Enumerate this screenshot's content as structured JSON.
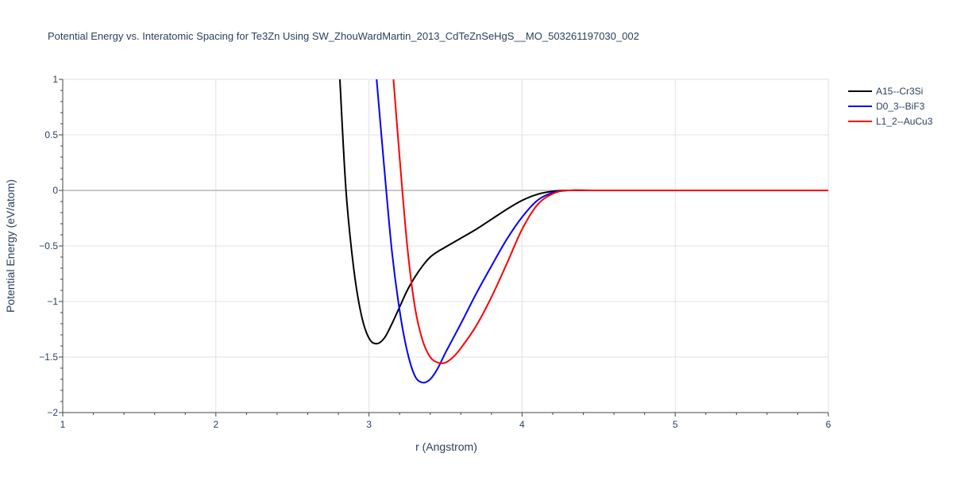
{
  "chart_data": {
    "type": "line",
    "title": "Potential Energy vs. Interatomic Spacing for Te3Zn Using SW_ZhouWardMartin_2013_CdTeZnSeHgS__MO_503261197030_002",
    "xlabel": "r (Angstrom)",
    "ylabel": "Potential Energy (eV/atom)",
    "xlim": [
      1,
      6
    ],
    "ylim": [
      -2,
      1
    ],
    "x_ticks": [
      1,
      2,
      3,
      4,
      5,
      6
    ],
    "x_tick_labels": [
      "1",
      "2",
      "3",
      "4",
      "5",
      "6"
    ],
    "y_ticks": [
      -2,
      -1.5,
      -1,
      -0.5,
      0,
      0.5,
      1
    ],
    "y_tick_labels": [
      "−2",
      "−1.5",
      "−1",
      "−0.5",
      "0",
      "0.5",
      "1"
    ],
    "grid": true,
    "legend_position": "top-right",
    "series": [
      {
        "name": "A15--Cr3Si",
        "color": "#000000",
        "x": [
          2.81,
          2.85,
          2.9,
          2.95,
          3.0,
          3.05,
          3.1,
          3.15,
          3.2,
          3.25,
          3.3,
          3.35,
          3.4,
          3.45,
          3.5,
          3.6,
          3.7,
          3.8,
          3.9,
          4.0,
          4.1,
          4.2,
          4.3,
          4.5,
          5.0,
          6.0
        ],
        "y": [
          1.0,
          0.0,
          -0.7,
          -1.12,
          -1.33,
          -1.38,
          -1.33,
          -1.2,
          -1.05,
          -0.9,
          -0.78,
          -0.68,
          -0.6,
          -0.55,
          -0.51,
          -0.43,
          -0.35,
          -0.26,
          -0.17,
          -0.09,
          -0.035,
          -0.008,
          0.0,
          0.0,
          0.0,
          0.0
        ]
      },
      {
        "name": "D0_3--BiF3",
        "color": "#0000ff",
        "x": [
          3.05,
          3.1,
          3.15,
          3.2,
          3.25,
          3.3,
          3.35,
          3.4,
          3.45,
          3.5,
          3.6,
          3.7,
          3.8,
          3.9,
          4.0,
          4.1,
          4.2,
          4.3,
          4.5,
          5.0,
          6.0
        ],
        "y": [
          1.0,
          0.2,
          -0.55,
          -1.08,
          -1.45,
          -1.67,
          -1.73,
          -1.7,
          -1.6,
          -1.46,
          -1.2,
          -0.93,
          -0.68,
          -0.44,
          -0.24,
          -0.09,
          -0.02,
          0.0,
          0.0,
          0.0,
          0.0
        ]
      },
      {
        "name": "L1_2--AuCu3",
        "color": "#ff0000",
        "x": [
          3.16,
          3.2,
          3.25,
          3.3,
          3.35,
          3.4,
          3.45,
          3.5,
          3.55,
          3.6,
          3.7,
          3.8,
          3.9,
          4.0,
          4.1,
          4.2,
          4.3,
          4.5,
          5.0,
          6.0
        ],
        "y": [
          1.0,
          0.3,
          -0.5,
          -1.05,
          -1.35,
          -1.5,
          -1.55,
          -1.55,
          -1.5,
          -1.42,
          -1.22,
          -0.96,
          -0.66,
          -0.35,
          -0.13,
          -0.03,
          0.0,
          0.0,
          0.0,
          0.0
        ]
      }
    ]
  }
}
